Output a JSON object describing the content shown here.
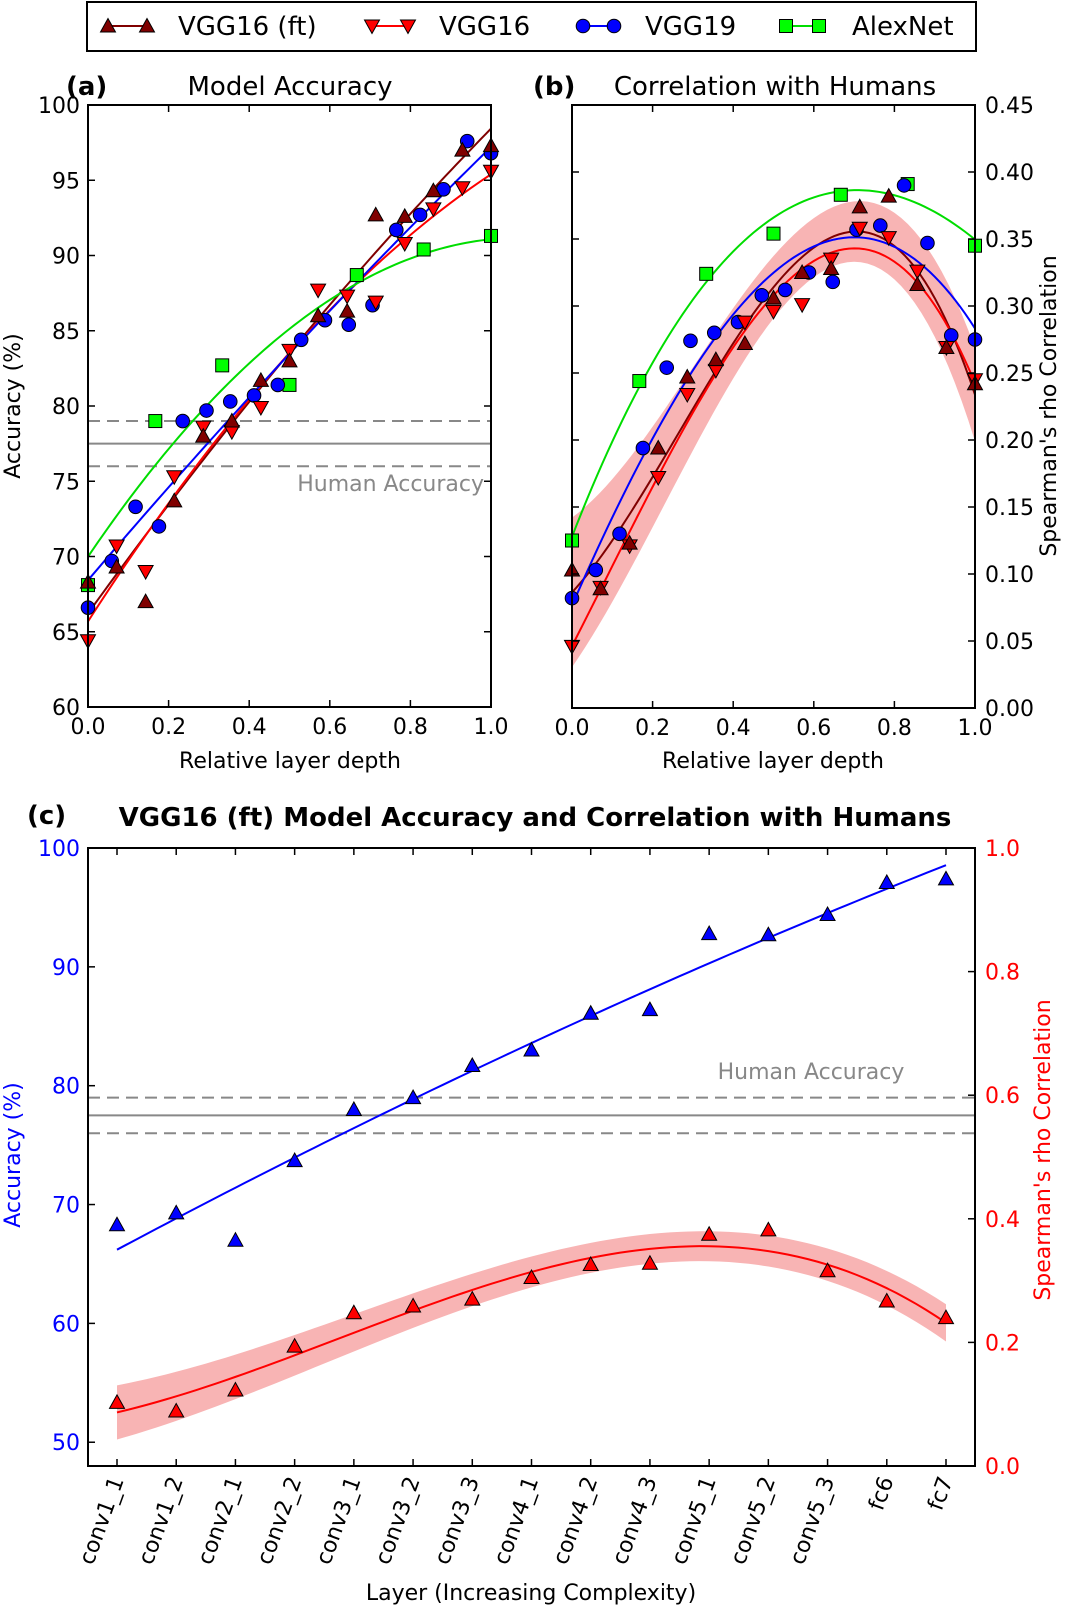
{
  "legend": {
    "entries": [
      {
        "name": "VGG16 (ft)",
        "color": "#800000",
        "marker_color": "#800000",
        "marker": "triangle-up"
      },
      {
        "name": "VGG16",
        "color": "#ff0000",
        "marker_color": "#ff0000",
        "marker": "triangle-down"
      },
      {
        "name": "VGG19",
        "color": "#0000ff",
        "marker_color": "#0000ff",
        "marker": "circle"
      },
      {
        "name": "AlexNet",
        "color": "#00dd00",
        "marker_color": "#00ff00",
        "marker": "square"
      }
    ]
  },
  "chart_data": [
    {
      "type": "scatter",
      "panel_label": "(a)",
      "title": "Model Accuracy",
      "xlabel": "Relative layer depth",
      "ylabel": "Accuracy (%)",
      "xlim": [
        0,
        1
      ],
      "ylim": [
        60,
        100
      ],
      "xticks": [
        0,
        0.2,
        0.4,
        0.6,
        0.8,
        1.0
      ],
      "xtick_labels": [
        "0.0",
        "0.2",
        "0.4",
        "0.6",
        "0.8",
        "1.0"
      ],
      "yticks": [
        60,
        65,
        70,
        75,
        80,
        85,
        90,
        95,
        100
      ],
      "ytick_labels": [
        "60",
        "65",
        "70",
        "75",
        "80",
        "85",
        "90",
        "95",
        "100"
      ],
      "y_axis_side": "left",
      "grid": false,
      "reference_lines": {
        "label": "Human Accuracy",
        "mean": 77.5,
        "upper": 79,
        "lower": 76,
        "color": "#888888"
      },
      "series": [
        {
          "name": "VGG16 (ft)",
          "x": [
            0,
            0.071,
            0.143,
            0.214,
            0.286,
            0.357,
            0.429,
            0.5,
            0.571,
            0.643,
            0.714,
            0.786,
            0.857,
            0.929,
            1
          ],
          "y": [
            68.3,
            69.3,
            67.0,
            73.7,
            78.0,
            79.0,
            81.7,
            83.0,
            86.0,
            86.3,
            92.7,
            92.6,
            94.3,
            97.0,
            97.3
          ]
        },
        {
          "name": "VGG16",
          "x": [
            0,
            0.071,
            0.143,
            0.214,
            0.286,
            0.357,
            0.429,
            0.5,
            0.571,
            0.643,
            0.714,
            0.786,
            0.857,
            0.929,
            1
          ],
          "y": [
            64.4,
            70.7,
            69.0,
            75.3,
            78.6,
            78.3,
            79.9,
            83.7,
            87.7,
            87.3,
            86.9,
            90.8,
            93.1,
            94.5,
            95.6
          ]
        },
        {
          "name": "VGG19",
          "x": [
            0,
            0.059,
            0.118,
            0.176,
            0.235,
            0.294,
            0.353,
            0.412,
            0.471,
            0.529,
            0.588,
            0.647,
            0.706,
            0.765,
            0.824,
            0.882,
            0.941,
            1
          ],
          "y": [
            66.6,
            69.7,
            73.3,
            72.0,
            79.0,
            79.7,
            80.3,
            80.7,
            81.4,
            84.4,
            85.7,
            85.4,
            86.7,
            91.7,
            92.7,
            94.4,
            97.6,
            96.8
          ]
        },
        {
          "name": "AlexNet",
          "x": [
            0,
            0.167,
            0.333,
            0.5,
            0.667,
            0.833,
            1
          ],
          "y": [
            68.1,
            79.0,
            82.7,
            81.4,
            88.7,
            90.4,
            91.3
          ]
        }
      ]
    },
    {
      "type": "scatter",
      "panel_label": "(b)",
      "title": "Correlation with Humans",
      "xlabel": "Relative layer depth",
      "ylabel": "Spearman's rho Correlation",
      "xlim": [
        0,
        1
      ],
      "ylim": [
        0,
        0.45
      ],
      "xticks": [
        0,
        0.2,
        0.4,
        0.6,
        0.8,
        1.0
      ],
      "xtick_labels": [
        "0.0",
        "0.2",
        "0.4",
        "0.6",
        "0.8",
        "1.0"
      ],
      "yticks": [
        0,
        0.05,
        0.1,
        0.15,
        0.2,
        0.25,
        0.3,
        0.35,
        0.4,
        0.45
      ],
      "ytick_labels": [
        "0.00",
        "0.05",
        "0.10",
        "0.15",
        "0.20",
        "0.25",
        "0.30",
        "0.35",
        "0.40",
        "0.45"
      ],
      "y_axis_side": "right",
      "grid": false,
      "band_series": "VGG16 (ft)",
      "band_color": "#f8b4b4",
      "series": [
        {
          "name": "VGG16 (ft)",
          "x": [
            0,
            0.071,
            0.143,
            0.214,
            0.286,
            0.357,
            0.429,
            0.5,
            0.571,
            0.643,
            0.714,
            0.786,
            0.857,
            0.929,
            1
          ],
          "y": [
            0.103,
            0.089,
            0.123,
            0.194,
            0.247,
            0.26,
            0.272,
            0.306,
            0.325,
            0.328,
            0.374,
            0.382,
            0.316,
            0.269,
            0.242
          ]
        },
        {
          "name": "VGG16",
          "x": [
            0,
            0.071,
            0.143,
            0.214,
            0.286,
            0.357,
            0.429,
            0.5,
            0.571,
            0.643,
            0.714,
            0.786,
            0.857,
            0.929,
            1
          ],
          "y": [
            0.046,
            0.09,
            0.121,
            0.172,
            0.234,
            0.252,
            0.288,
            0.296,
            0.301,
            0.335,
            0.358,
            0.351,
            0.326,
            0.269,
            0.245
          ]
        },
        {
          "name": "VGG19",
          "x": [
            0,
            0.059,
            0.118,
            0.176,
            0.235,
            0.294,
            0.353,
            0.412,
            0.471,
            0.529,
            0.588,
            0.647,
            0.706,
            0.765,
            0.824,
            0.882,
            0.941,
            1
          ],
          "y": [
            0.082,
            0.103,
            0.13,
            0.194,
            0.254,
            0.274,
            0.28,
            0.288,
            0.308,
            0.312,
            0.325,
            0.318,
            0.357,
            0.36,
            0.39,
            0.347,
            0.278,
            0.275
          ]
        },
        {
          "name": "AlexNet",
          "x": [
            0,
            0.167,
            0.333,
            0.5,
            0.667,
            0.833,
            1
          ],
          "y": [
            0.125,
            0.244,
            0.324,
            0.354,
            0.383,
            0.391,
            0.345
          ]
        }
      ]
    },
    {
      "type": "scatter",
      "panel_label": "(c)",
      "title": "VGG16 (ft) Model Accuracy and Correlation with Humans",
      "xlabel": "Layer (Increasing Complexity)",
      "categories": [
        "conv1_1",
        "conv1_2",
        "conv2_1",
        "conv2_2",
        "conv3_1",
        "conv3_2",
        "conv3_3",
        "conv4_1",
        "conv4_2",
        "conv4_3",
        "conv5_1",
        "conv5_2",
        "conv5_3",
        "fc6",
        "fc7"
      ],
      "grid": false,
      "reference_lines": {
        "label": "Human Accuracy",
        "mean": 77.5,
        "upper": 79,
        "lower": 76,
        "color": "#888888"
      },
      "y_left": {
        "label": "Accuracy (%)",
        "color": "#0000ff",
        "ylim": [
          48,
          100
        ],
        "yticks": [
          50,
          60,
          70,
          80,
          90,
          100
        ],
        "ytick_labels": [
          "50",
          "60",
          "70",
          "80",
          "90",
          "100"
        ]
      },
      "y_right": {
        "label": "Spearman's rho Correlation",
        "color": "#ff0000",
        "ylim": [
          0,
          1
        ],
        "yticks": [
          0,
          0.2,
          0.4,
          0.6,
          0.8,
          1.0
        ],
        "ytick_labels": [
          "0.0",
          "0.2",
          "0.4",
          "0.6",
          "0.8",
          "1.0"
        ]
      },
      "left_series": {
        "axis": "left",
        "color": "#0000ff",
        "marker": "triangle-up",
        "values": [
          68.3,
          69.3,
          67.0,
          73.7,
          78.0,
          79.0,
          81.7,
          83.0,
          86.1,
          86.4,
          92.8,
          92.7,
          94.4,
          97.1,
          97.4
        ]
      },
      "right_series": {
        "axis": "right",
        "color": "#ff0000",
        "marker": "triangle-up",
        "band_color": "#f8b4b4",
        "values": [
          0.103,
          0.089,
          0.123,
          0.194,
          0.248,
          0.259,
          0.27,
          0.305,
          0.326,
          0.328,
          0.375,
          0.382,
          0.316,
          0.267,
          0.24
        ]
      }
    }
  ]
}
